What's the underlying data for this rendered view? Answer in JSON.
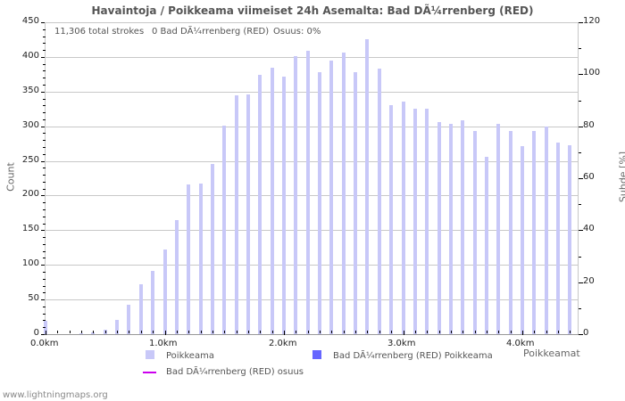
{
  "chart_data": {
    "type": "bar",
    "title": "Havaintoja / Poikkeama viimeiset 24h Asemalta: Bad DÃ¼rrenberg (RED)",
    "xlabel": "Poikkeamat",
    "ylabel": "Count",
    "ylabel_right": "Suhde [%]",
    "ylim": [
      0,
      450
    ],
    "ylim_right": [
      0,
      120
    ],
    "yticks": [
      0,
      50,
      100,
      150,
      200,
      250,
      300,
      350,
      400,
      450
    ],
    "yticks_right": [
      0,
      20,
      40,
      60,
      80,
      100,
      120
    ],
    "xtick_labels": [
      "0.0km",
      "1.0km",
      "2.0km",
      "3.0km",
      "4.0km"
    ],
    "grid": true,
    "bin_km": 0.1,
    "series": [
      {
        "name": "Poikkeama",
        "color": "#c8c8f8",
        "values": [
          19,
          0,
          0,
          1,
          2,
          6,
          20,
          42,
          72,
          91,
          122,
          165,
          216,
          217,
          245,
          301,
          345,
          346,
          374,
          384,
          371,
          401,
          409,
          378,
          395,
          406,
          378,
          425,
          383,
          330,
          335,
          325,
          325,
          306,
          303,
          308,
          293,
          256,
          303,
          293,
          271,
          293,
          300,
          276,
          272
        ]
      },
      {
        "name": "Bad DÃ¼rrenberg (RED) Poikkeama",
        "color": "#6666ff",
        "values": [
          0,
          0,
          0,
          0,
          0,
          0,
          0,
          0,
          0,
          0,
          0,
          0,
          0,
          0,
          0,
          0,
          0,
          0,
          0,
          0,
          0,
          0,
          0,
          0,
          0,
          0,
          0,
          0,
          0,
          0,
          0,
          0,
          0,
          0,
          0,
          0,
          0,
          0,
          0,
          0,
          0,
          0,
          0,
          0,
          0
        ]
      },
      {
        "name": "Bad DÃ¼rrenberg (RED) osuus",
        "color": "#cc00ee",
        "type": "line",
        "values": []
      }
    ]
  },
  "header": {
    "title": "Havaintoja / Poikkeama viimeiset 24h Asemalta: Bad DÃ¼rrenberg (RED)",
    "total_strokes": "11,306 total strokes",
    "station_strokes": "0 Bad DÃ¼rrenberg (RED)",
    "share": "Osuus: 0%"
  },
  "axes": {
    "y_left_label": "Count",
    "y_right_label": "Suhde [%]",
    "x_label": "Poikkeamat",
    "y_left_ticks": [
      "0",
      "50",
      "100",
      "150",
      "200",
      "250",
      "300",
      "350",
      "400",
      "450"
    ],
    "y_right_ticks": [
      "0",
      "20",
      "40",
      "60",
      "80",
      "100",
      "120"
    ],
    "x_ticks": [
      "0.0km",
      "1.0km",
      "2.0km",
      "3.0km",
      "4.0km"
    ]
  },
  "legend": {
    "poikkeama": "Poikkeama",
    "station_poikkeama": "Bad DÃ¼rrenberg (RED) Poikkeama",
    "station_osuus": "Bad DÃ¼rrenberg (RED) osuus"
  },
  "footer": "www.lightningmaps.org"
}
